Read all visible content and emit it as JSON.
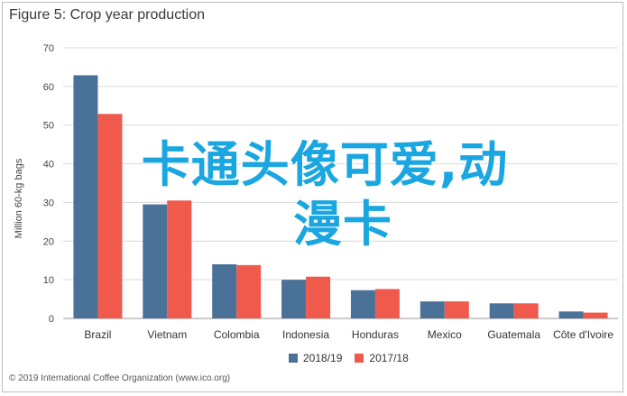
{
  "chart_data": {
    "type": "bar",
    "title": "Figure 5: Crop year production",
    "ylabel": "Million 60-kg bags",
    "xlabel": "",
    "ylim": [
      0,
      70
    ],
    "yticks": [
      0,
      10,
      20,
      30,
      40,
      50,
      60,
      70
    ],
    "grid": true,
    "legend_position": "bottom",
    "categories": [
      "Brazil",
      "Vietnam",
      "Colombia",
      "Indonesia",
      "Honduras",
      "Mexico",
      "Guatemala",
      "Côte d'Ivoire"
    ],
    "series": [
      {
        "name": "2018/19",
        "color": "#4a7197",
        "values": [
          62.9,
          29.5,
          14.0,
          10.0,
          7.3,
          4.4,
          3.9,
          1.8
        ]
      },
      {
        "name": "2017/18",
        "color": "#ef5a4d",
        "values": [
          52.9,
          30.5,
          13.8,
          10.8,
          7.6,
          4.4,
          3.9,
          1.5
        ]
      }
    ]
  },
  "overlay": {
    "line1": "卡通头像可爱,动",
    "line2": "漫卡"
  },
  "footer": "© 2019 International Coffee Organization (www.ico.org)"
}
